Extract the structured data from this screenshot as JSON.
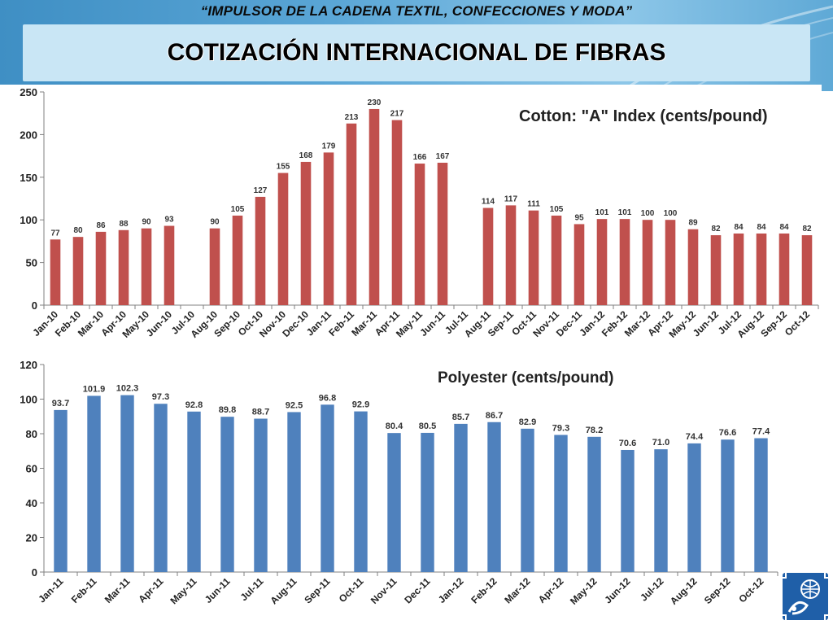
{
  "header": {
    "subtitle": "“IMPULSOR DE LA CADENA TEXTIL, CONFECCIONES Y MODA”",
    "title": "COTIZACIÓN INTERNACIONAL DE FIBRAS"
  },
  "colors": {
    "cotton_bar": "#c0504d",
    "polyester_bar": "#4f81bd",
    "header_blue": "#4a9bd0",
    "title_band": "#c9e6f5"
  },
  "chart_data": [
    {
      "type": "bar",
      "title": "Cotton: \"A\" Index (cents/pound)",
      "xlabel": "",
      "ylabel": "",
      "ylim": [
        0,
        250
      ],
      "yticks": [
        0,
        50,
        100,
        150,
        200,
        250
      ],
      "grid": false,
      "categories": [
        "Jan-10",
        "Feb-10",
        "Mar-10",
        "Apr-10",
        "May-10",
        "Jun-10",
        "Jul-10",
        "Aug-10",
        "Sep-10",
        "Oct-10",
        "Nov-10",
        "Dec-10",
        "Jan-11",
        "Feb-11",
        "Mar-11",
        "Apr-11",
        "May-11",
        "Jun-11",
        "Jul-11",
        "Aug-11",
        "Sep-11",
        "Oct-11",
        "Nov-11",
        "Dec-11",
        "Jan-12",
        "Feb-12",
        "Mar-12",
        "Apr-12",
        "May-12",
        "Jun-12",
        "Jul-12",
        "Aug-12",
        "Sep-12",
        "Oct-12"
      ],
      "values": [
        77,
        80,
        86,
        88,
        90,
        93,
        null,
        90,
        105,
        127,
        155,
        168,
        179,
        213,
        230,
        217,
        166,
        167,
        null,
        114,
        117,
        111,
        105,
        95,
        101,
        101,
        100,
        100,
        89,
        82,
        84,
        84,
        84,
        82
      ],
      "labels": [
        "77",
        "80",
        "86",
        "88",
        "90",
        "93",
        "",
        "90",
        "105",
        "127",
        "155",
        "168",
        "179",
        "213",
        "230",
        "217",
        "166",
        "167",
        "",
        "114",
        "117",
        "111",
        "105",
        "95",
        "101",
        "101",
        "100",
        "100",
        "89",
        "82",
        "84",
        "84",
        "84",
        "82"
      ]
    },
    {
      "type": "bar",
      "title": "Polyester (cents/pound)",
      "xlabel": "",
      "ylabel": "",
      "ylim": [
        0,
        120
      ],
      "yticks": [
        0,
        20,
        40,
        60,
        80,
        100,
        120
      ],
      "grid": false,
      "categories": [
        "Jan-11",
        "Feb-11",
        "Mar-11",
        "Apr-11",
        "May-11",
        "Jun-11",
        "Jul-11",
        "Aug-11",
        "Sep-11",
        "Oct-11",
        "Nov-11",
        "Dec-11",
        "Jan-12",
        "Feb-12",
        "Mar-12",
        "Apr-12",
        "May-12",
        "Jun-12",
        "Jul-12",
        "Aug-12",
        "Sep-12",
        "Oct-12"
      ],
      "values": [
        93.7,
        101.9,
        102.3,
        97.3,
        92.8,
        89.8,
        88.7,
        92.5,
        96.8,
        92.9,
        80.4,
        80.5,
        85.7,
        86.7,
        82.9,
        79.3,
        78.2,
        70.6,
        71.0,
        74.4,
        76.6,
        77.4
      ],
      "labels": [
        "93.7",
        "101.9",
        "102.3",
        "97.3",
        "92.8",
        "89.8",
        "88.7",
        "92.5",
        "96.8",
        "92.9",
        "80.4",
        "80.5",
        "85.7",
        "86.7",
        "82.9",
        "79.3",
        "78.2",
        "70.6",
        "71.0",
        "74.4",
        "76.6",
        "77.4"
      ]
    }
  ]
}
